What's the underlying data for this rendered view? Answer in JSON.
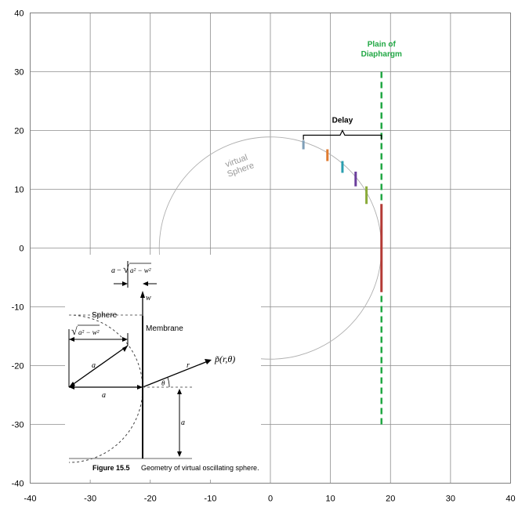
{
  "chart_data": {
    "type": "scatter",
    "title": "",
    "xlabel": "",
    "ylabel": "",
    "xlim": [
      -40,
      40
    ],
    "ylim": [
      -40,
      40
    ],
    "x_ticks": [
      -40,
      -30,
      -20,
      -10,
      0,
      10,
      20,
      30,
      40
    ],
    "y_ticks": [
      -40,
      -30,
      -20,
      -10,
      0,
      10,
      20,
      30,
      40
    ],
    "grid": true,
    "virtual_sphere": {
      "label": "virtual Sphere",
      "label_lines": [
        "virtual",
        "Sphere"
      ],
      "center": [
        0,
        0
      ],
      "radius": 18.5,
      "arc_start_deg": 88,
      "arc_end_deg": 272,
      "color": "#b0b0b0"
    },
    "diaphragm_plane": {
      "label": "Plain of Diaphargm",
      "label_lines": [
        "Plain of",
        "Diaphargm"
      ],
      "x": 18.5,
      "y_range": [
        -30,
        30
      ],
      "color": "#22a845"
    },
    "delay_bracket": {
      "label": "Delay",
      "x_range": [
        5.5,
        18.5
      ],
      "y": 19.2
    },
    "segments": [
      {
        "x": 5.5,
        "y_range": [
          16.8,
          18.3
        ],
        "color": "#7f9fb8"
      },
      {
        "x": 9.5,
        "y_range": [
          14.8,
          16.8
        ],
        "color": "#e07b30"
      },
      {
        "x": 12.0,
        "y_range": [
          12.8,
          14.8
        ],
        "color": "#2a9fb0"
      },
      {
        "x": 14.2,
        "y_range": [
          10.5,
          13.0
        ],
        "color": "#6b3e9c"
      },
      {
        "x": 16.0,
        "y_range": [
          7.5,
          10.5
        ],
        "color": "#8aab3a"
      },
      {
        "x": 18.5,
        "y_range": [
          -7.5,
          7.5
        ],
        "color": "#b43b36"
      }
    ]
  },
  "inset": {
    "label_top_formula_a": "a",
    "label_top_formula_minus": "−",
    "label_top_formula_root": "a² − w²",
    "label_w": "w",
    "label_sphere": "Sphere",
    "label_membrane": "Membrane",
    "label_left_root": "a² − w²",
    "label_a_diag": "a",
    "label_a_horiz": "a",
    "label_a_vert": "a",
    "label_r": "r",
    "label_p": "p̃(r,θ)",
    "label_theta": "θ",
    "caption_bold": "Figure 15.5",
    "caption_text": "Geometry of virtual oscillating sphere."
  }
}
